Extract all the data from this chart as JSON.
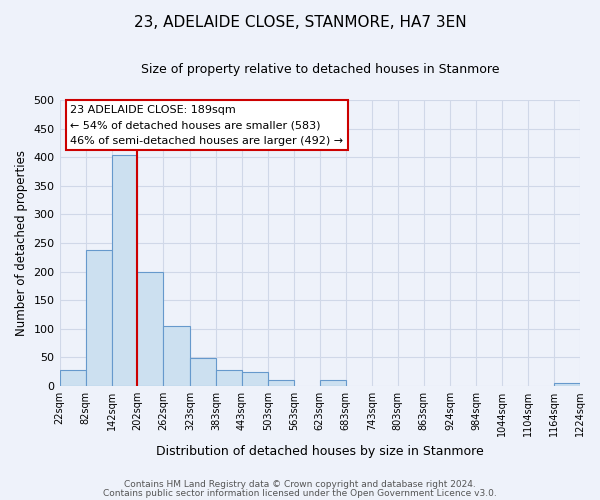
{
  "title": "23, ADELAIDE CLOSE, STANMORE, HA7 3EN",
  "subtitle": "Size of property relative to detached houses in Stanmore",
  "xlabel": "Distribution of detached houses by size in Stanmore",
  "ylabel": "Number of detached properties",
  "bin_edges": [
    22,
    82,
    142,
    202,
    262,
    323,
    383,
    443,
    503,
    563,
    623,
    683,
    743,
    803,
    863,
    924,
    984,
    1044,
    1104,
    1164,
    1224
  ],
  "bin_labels": [
    "22sqm",
    "82sqm",
    "142sqm",
    "202sqm",
    "262sqm",
    "323sqm",
    "383sqm",
    "443sqm",
    "503sqm",
    "563sqm",
    "623sqm",
    "683sqm",
    "743sqm",
    "803sqm",
    "863sqm",
    "924sqm",
    "984sqm",
    "1044sqm",
    "1104sqm",
    "1164sqm",
    "1224sqm"
  ],
  "counts": [
    27,
    238,
    404,
    200,
    105,
    48,
    27,
    25,
    10,
    0,
    10,
    0,
    0,
    0,
    0,
    0,
    0,
    0,
    0,
    5
  ],
  "bar_color": "#cce0f0",
  "bar_edge_color": "#6699cc",
  "property_line_color": "#cc0000",
  "annotation_title": "23 ADELAIDE CLOSE: 189sqm",
  "annotation_line1": "← 54% of detached houses are smaller (583)",
  "annotation_line2": "46% of semi-detached houses are larger (492) →",
  "annotation_box_color": "#ffffff",
  "annotation_box_edge": "#cc0000",
  "ylim": [
    0,
    500
  ],
  "yticks": [
    0,
    50,
    100,
    150,
    200,
    250,
    300,
    350,
    400,
    450,
    500
  ],
  "footer_line1": "Contains HM Land Registry data © Crown copyright and database right 2024.",
  "footer_line2": "Contains public sector information licensed under the Open Government Licence v3.0.",
  "bg_color": "#eef2fa",
  "grid_color": "#d0d8e8",
  "title_fontsize": 11,
  "subtitle_fontsize": 9
}
